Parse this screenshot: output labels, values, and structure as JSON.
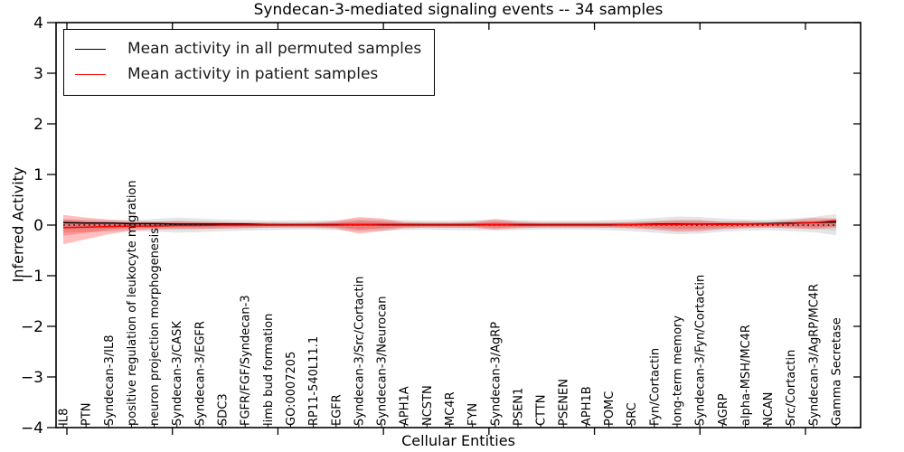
{
  "title": "Syndecan-3-mediated signaling events -- 34 samples",
  "axes": {
    "xlabel": "Cellular Entities",
    "ylabel": "Inferred Activity",
    "ylim": [
      -4,
      4
    ],
    "yticks": [
      4,
      3,
      2,
      1,
      0,
      -1,
      -2,
      -3,
      -4
    ],
    "ytick_labels": [
      "4",
      "3",
      "2",
      "1",
      "0",
      "−1",
      "−2",
      "−3",
      "−4"
    ]
  },
  "legend": {
    "position": "upper left",
    "entries": [
      {
        "label": "Mean activity in all permuted samples",
        "color": "#000000"
      },
      {
        "label": "Mean activity in patient samples",
        "color": "#ff0000"
      }
    ]
  },
  "chart_data": {
    "type": "line",
    "title": "Syndecan-3-mediated signaling events -- 34 samples",
    "xlabel": "Cellular Entities",
    "ylabel": "Inferred Activity",
    "ylim": [
      -4,
      4
    ],
    "grid": false,
    "categories": [
      "IL8",
      "PTN",
      "Syndecan-3/IL8",
      "positive regulation of leukocyte migration",
      "neuron projection morphogenesis",
      "Syndecan-3/CASK",
      "Syndecan-3/EGFR",
      "SDC3",
      "FGFR/FGF/Syndecan-3",
      "limb bud formation",
      "GO:0007205",
      "RP11-540L11.1",
      "EGFR",
      "Syndecan-3/Src/Cortactin",
      "Syndecan-3/Neurocan",
      "APH1A",
      "NCSTN",
      "MC4R",
      "FYN",
      "Syndecan-3/AgRP",
      "PSEN1",
      "CTTN",
      "PSENEN",
      "APH1B",
      "POMC",
      "SRC",
      "Fyn/Cortactin",
      "long-term memory",
      "Syndecan-3/Fyn/Cortactin",
      "AGRP",
      "alpha-MSH/MC4R",
      "NCAN",
      "Src/Cortactin",
      "Syndecan-3/AgRP/MC4R",
      "Gamma Secretase"
    ],
    "series": [
      {
        "name": "Mean activity in all permuted samples",
        "color": "#000000",
        "style": "solid",
        "values": [
          0.05,
          0.04,
          0.04,
          0.03,
          0.03,
          0.02,
          0.02,
          0.02,
          0.02,
          0.01,
          0.01,
          0.01,
          0.01,
          0.01,
          0.01,
          0.01,
          0.01,
          0.01,
          0.01,
          0.01,
          0.01,
          0.01,
          0.01,
          0.01,
          0.01,
          0.01,
          0.02,
          0.02,
          0.02,
          0.02,
          0.02,
          0.03,
          0.04,
          0.05,
          0.06
        ]
      },
      {
        "name": "Mean activity in patient samples",
        "color": "#ff0000",
        "style": "solid",
        "values": [
          -0.05,
          -0.04,
          -0.03,
          -0.02,
          -0.02,
          -0.01,
          -0.01,
          0,
          0,
          0,
          0,
          0,
          0,
          0.01,
          0,
          0,
          0,
          0,
          0,
          0.01,
          0,
          0,
          0,
          0,
          0,
          0.01,
          0.01,
          0.01,
          0.02,
          0.01,
          0.02,
          0.02,
          0.03,
          0.05,
          0.09
        ]
      }
    ],
    "bands": [
      {
        "name": "permuted-samples-envelope",
        "color": "rgba(0,0,0,0.10)",
        "inner_color": "rgba(0,0,0,0.07)",
        "inner_scale": 0.55,
        "upper": [
          0.12,
          0.11,
          0.1,
          0.1,
          0.12,
          0.15,
          0.13,
          0.11,
          0.1,
          0.09,
          0.09,
          0.09,
          0.1,
          0.12,
          0.11,
          0.1,
          0.09,
          0.09,
          0.1,
          0.11,
          0.1,
          0.09,
          0.09,
          0.09,
          0.1,
          0.11,
          0.14,
          0.17,
          0.16,
          0.13,
          0.11,
          0.11,
          0.13,
          0.16,
          0.22
        ],
        "lower": [
          -0.15,
          -0.14,
          -0.13,
          -0.12,
          -0.13,
          -0.15,
          -0.14,
          -0.12,
          -0.11,
          -0.1,
          -0.09,
          -0.09,
          -0.1,
          -0.12,
          -0.11,
          -0.1,
          -0.09,
          -0.1,
          -0.1,
          -0.11,
          -0.1,
          -0.09,
          -0.09,
          -0.09,
          -0.1,
          -0.12,
          -0.15,
          -0.18,
          -0.17,
          -0.13,
          -0.11,
          -0.1,
          -0.12,
          -0.14,
          -0.2
        ]
      },
      {
        "name": "patient-samples-envelope",
        "color": "rgba(255,0,0,0.25)",
        "inner_color": "rgba(255,0,0,0.22)",
        "inner_scale": 0.55,
        "upper": [
          0.2,
          0.15,
          0.11,
          0.08,
          0.07,
          0.08,
          0.07,
          0.06,
          0.05,
          0.05,
          0.04,
          0.05,
          0.08,
          0.16,
          0.13,
          0.06,
          0.05,
          0.05,
          0.06,
          0.12,
          0.07,
          0.05,
          0.05,
          0.05,
          0.05,
          0.06,
          0.08,
          0.1,
          0.1,
          0.07,
          0.08,
          0.06,
          0.1,
          0.14,
          0.13
        ],
        "lower": [
          -0.38,
          -0.28,
          -0.18,
          -0.11,
          -0.09,
          -0.08,
          -0.08,
          -0.07,
          -0.06,
          -0.05,
          -0.05,
          -0.05,
          -0.07,
          -0.17,
          -0.12,
          -0.06,
          -0.05,
          -0.05,
          -0.05,
          -0.09,
          -0.06,
          -0.05,
          -0.05,
          -0.05,
          -0.05,
          -0.06,
          -0.09,
          -0.13,
          -0.12,
          -0.08,
          -0.06,
          -0.05,
          -0.06,
          -0.08,
          -0.05
        ]
      }
    ],
    "zero_line": {
      "y": 0,
      "color": "#000000",
      "style": "dotted"
    }
  }
}
